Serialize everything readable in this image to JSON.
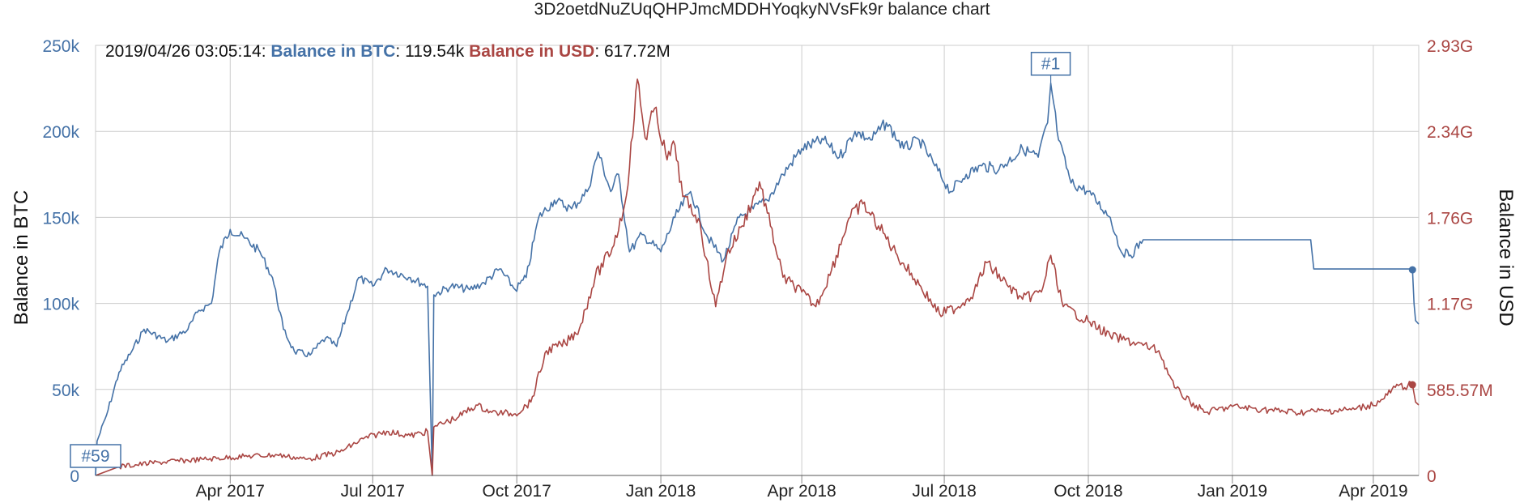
{
  "chart_data": {
    "type": "line",
    "title": "3D2oetdNuZUqQHPJmcMDDHYoqkyNVsFk9r balance chart",
    "ylabel_left": "Balance in BTC",
    "ylabel_right": "Balance in USD",
    "x_ticks": [
      "Apr 2017",
      "Jul 2017",
      "Oct 2017",
      "Jan 2018",
      "Apr 2018",
      "Jul 2018",
      "Oct 2018",
      "Jan 2019",
      "Apr 2019"
    ],
    "y_left_ticks": [
      "0",
      "50k",
      "100k",
      "150k",
      "200k",
      "250k"
    ],
    "y_right_ticks": [
      "0",
      "585.57M",
      "1.17G",
      "1.76G",
      "2.34G",
      "2.93G"
    ],
    "y_left_range": [
      0,
      250000
    ],
    "y_right_range": [
      0,
      2930000000
    ],
    "x_range": [
      "2017-01-05",
      "2019-04-30"
    ],
    "legend": {
      "date": "2019/04/26 03:05:14",
      "btc_label": "Balance in BTC",
      "btc_value": "119.54k",
      "usd_label": "Balance in USD",
      "usd_value": "617.72M"
    },
    "flags": [
      {
        "label": "#59",
        "x": "2017-01-05",
        "y": 0
      },
      {
        "label": "#1",
        "x": "2018-09-07",
        "y": 228000
      }
    ],
    "series": [
      {
        "name": "Balance in BTC",
        "axis": "left",
        "color": "#4572A7",
        "points": [
          [
            "2017-01-05",
            0
          ],
          [
            "2017-01-06",
            20000
          ],
          [
            "2017-01-12",
            35000
          ],
          [
            "2017-01-20",
            60000
          ],
          [
            "2017-01-28",
            72000
          ],
          [
            "2017-02-05",
            85000
          ],
          [
            "2017-02-20",
            78000
          ],
          [
            "2017-03-05",
            85000
          ],
          [
            "2017-03-12",
            96000
          ],
          [
            "2017-03-20",
            100000
          ],
          [
            "2017-03-25",
            130000
          ],
          [
            "2017-04-01",
            143000
          ],
          [
            "2017-04-10",
            138000
          ],
          [
            "2017-04-20",
            130000
          ],
          [
            "2017-04-28",
            115000
          ],
          [
            "2017-05-05",
            85000
          ],
          [
            "2017-05-12",
            72000
          ],
          [
            "2017-05-22",
            70000
          ],
          [
            "2017-06-01",
            80000
          ],
          [
            "2017-06-08",
            75000
          ],
          [
            "2017-06-15",
            95000
          ],
          [
            "2017-06-22",
            115000
          ],
          [
            "2017-07-01",
            110000
          ],
          [
            "2017-07-10",
            120000
          ],
          [
            "2017-07-25",
            115000
          ],
          [
            "2017-08-05",
            110000
          ],
          [
            "2017-08-08",
            0
          ],
          [
            "2017-08-09",
            105000
          ],
          [
            "2017-08-20",
            110000
          ],
          [
            "2017-09-01",
            108000
          ],
          [
            "2017-09-10",
            112000
          ],
          [
            "2017-09-20",
            120000
          ],
          [
            "2017-09-30",
            108000
          ],
          [
            "2017-10-07",
            115000
          ],
          [
            "2017-10-15",
            150000
          ],
          [
            "2017-10-25",
            160000
          ],
          [
            "2017-11-05",
            155000
          ],
          [
            "2017-11-15",
            165000
          ],
          [
            "2017-11-22",
            188000
          ],
          [
            "2017-11-30",
            165000
          ],
          [
            "2017-12-05",
            175000
          ],
          [
            "2017-12-12",
            130000
          ],
          [
            "2017-12-20",
            140000
          ],
          [
            "2018-01-01",
            130000
          ],
          [
            "2018-01-10",
            150000
          ],
          [
            "2018-01-20",
            165000
          ],
          [
            "2018-01-30",
            140000
          ],
          [
            "2018-02-10",
            125000
          ],
          [
            "2018-02-20",
            150000
          ],
          [
            "2018-03-01",
            155000
          ],
          [
            "2018-03-10",
            160000
          ],
          [
            "2018-03-20",
            175000
          ],
          [
            "2018-04-01",
            190000
          ],
          [
            "2018-04-15",
            195000
          ],
          [
            "2018-04-25",
            185000
          ],
          [
            "2018-05-05",
            200000
          ],
          [
            "2018-05-15",
            195000
          ],
          [
            "2018-05-25",
            205000
          ],
          [
            "2018-06-05",
            190000
          ],
          [
            "2018-06-15",
            195000
          ],
          [
            "2018-06-25",
            180000
          ],
          [
            "2018-07-05",
            165000
          ],
          [
            "2018-07-15",
            175000
          ],
          [
            "2018-07-25",
            180000
          ],
          [
            "2018-08-05",
            178000
          ],
          [
            "2018-08-20",
            190000
          ],
          [
            "2018-08-30",
            185000
          ],
          [
            "2018-09-05",
            205000
          ],
          [
            "2018-09-07",
            228000
          ],
          [
            "2018-09-12",
            195000
          ],
          [
            "2018-09-20",
            170000
          ],
          [
            "2018-10-01",
            165000
          ],
          [
            "2018-10-15",
            150000
          ],
          [
            "2018-10-22",
            130000
          ],
          [
            "2018-10-28",
            128000
          ],
          [
            "2018-11-05",
            137000
          ],
          [
            "2019-02-20",
            137000
          ],
          [
            "2019-02-22",
            120000
          ],
          [
            "2019-04-25",
            120000
          ],
          [
            "2019-04-26",
            119540
          ],
          [
            "2019-04-27",
            100000
          ],
          [
            "2019-04-28",
            90000
          ],
          [
            "2019-04-30",
            88000
          ]
        ]
      },
      {
        "name": "Balance in USD",
        "axis": "right",
        "color": "#AA4643",
        "points": [
          [
            "2017-01-05",
            0
          ],
          [
            "2017-01-20",
            60000000
          ],
          [
            "2017-02-15",
            90000000
          ],
          [
            "2017-03-15",
            110000000
          ],
          [
            "2017-04-10",
            130000000
          ],
          [
            "2017-05-01",
            140000000
          ],
          [
            "2017-05-20",
            110000000
          ],
          [
            "2017-06-10",
            160000000
          ],
          [
            "2017-06-25",
            250000000
          ],
          [
            "2017-07-10",
            300000000
          ],
          [
            "2017-07-25",
            270000000
          ],
          [
            "2017-08-05",
            300000000
          ],
          [
            "2017-08-08",
            0
          ],
          [
            "2017-08-09",
            330000000
          ],
          [
            "2017-08-25",
            400000000
          ],
          [
            "2017-09-05",
            480000000
          ],
          [
            "2017-09-15",
            430000000
          ],
          [
            "2017-09-30",
            420000000
          ],
          [
            "2017-10-10",
            500000000
          ],
          [
            "2017-10-20",
            850000000
          ],
          [
            "2017-11-01",
            900000000
          ],
          [
            "2017-11-10",
            1000000000
          ],
          [
            "2017-11-20",
            1350000000
          ],
          [
            "2017-12-01",
            1550000000
          ],
          [
            "2017-12-08",
            1800000000
          ],
          [
            "2017-12-12",
            2100000000
          ],
          [
            "2017-12-17",
            2700000000
          ],
          [
            "2017-12-22",
            2300000000
          ],
          [
            "2017-12-28",
            2500000000
          ],
          [
            "2018-01-05",
            2150000000
          ],
          [
            "2018-01-10",
            2250000000
          ],
          [
            "2018-01-15",
            1900000000
          ],
          [
            "2018-01-25",
            1750000000
          ],
          [
            "2018-02-05",
            1150000000
          ],
          [
            "2018-02-12",
            1500000000
          ],
          [
            "2018-02-22",
            1700000000
          ],
          [
            "2018-03-05",
            2000000000
          ],
          [
            "2018-03-12",
            1700000000
          ],
          [
            "2018-03-20",
            1350000000
          ],
          [
            "2018-04-01",
            1250000000
          ],
          [
            "2018-04-10",
            1150000000
          ],
          [
            "2018-04-20",
            1400000000
          ],
          [
            "2018-05-01",
            1750000000
          ],
          [
            "2018-05-10",
            1850000000
          ],
          [
            "2018-05-20",
            1700000000
          ],
          [
            "2018-06-01",
            1500000000
          ],
          [
            "2018-06-15",
            1300000000
          ],
          [
            "2018-06-28",
            1100000000
          ],
          [
            "2018-07-10",
            1150000000
          ],
          [
            "2018-07-20",
            1250000000
          ],
          [
            "2018-07-28",
            1450000000
          ],
          [
            "2018-08-10",
            1300000000
          ],
          [
            "2018-08-20",
            1200000000
          ],
          [
            "2018-09-01",
            1250000000
          ],
          [
            "2018-09-07",
            1500000000
          ],
          [
            "2018-09-15",
            1150000000
          ],
          [
            "2018-10-01",
            1050000000
          ],
          [
            "2018-10-15",
            950000000
          ],
          [
            "2018-11-01",
            900000000
          ],
          [
            "2018-11-15",
            850000000
          ],
          [
            "2018-11-25",
            600000000
          ],
          [
            "2018-12-05",
            500000000
          ],
          [
            "2018-12-15",
            430000000
          ],
          [
            "2019-01-01",
            470000000
          ],
          [
            "2019-01-20",
            450000000
          ],
          [
            "2019-02-10",
            430000000
          ],
          [
            "2019-03-01",
            440000000
          ],
          [
            "2019-03-20",
            450000000
          ],
          [
            "2019-04-05",
            500000000
          ],
          [
            "2019-04-15",
            600000000
          ],
          [
            "2019-04-26",
            617720000
          ],
          [
            "2019-04-28",
            500000000
          ],
          [
            "2019-04-30",
            480000000
          ]
        ]
      }
    ]
  }
}
